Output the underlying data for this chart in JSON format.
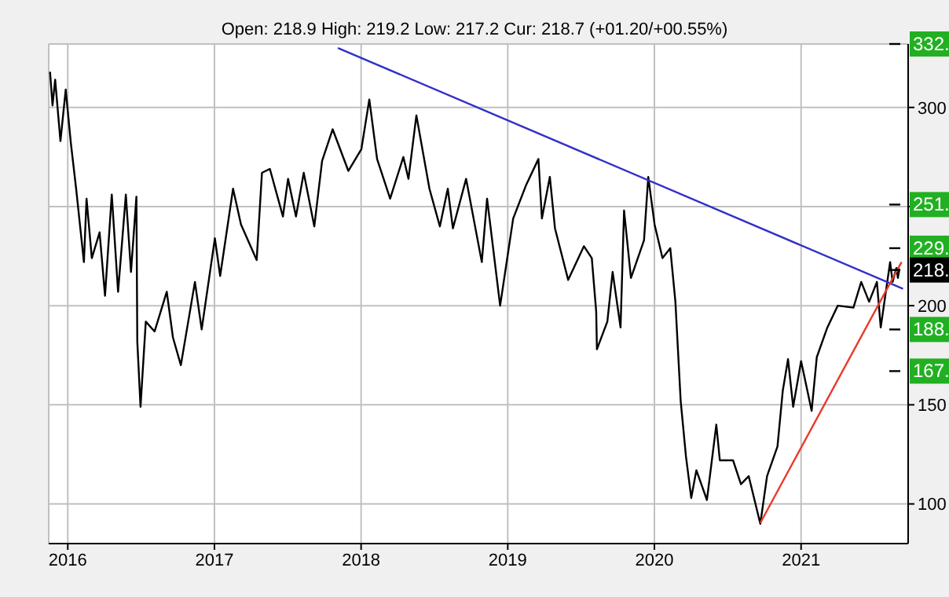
{
  "chart_data": {
    "type": "line",
    "subtitle": "Open: 218.9 High: 219.2 Low: 217.2 Cur: 218.7 (+01.20/+00.55%)",
    "xlim": [
      2015.87,
      2021.73
    ],
    "xticks": [
      2016,
      2017,
      2018,
      2019,
      2020,
      2021
    ],
    "ylim": [
      80,
      332
    ],
    "yticks": [
      100,
      150,
      200,
      {
        "value": 250,
        "label": null
      },
      300
    ],
    "grid": true,
    "series": [
      {
        "color": "#000000",
        "x": [
          2015.879,
          2015.896,
          2015.914,
          2015.95,
          2015.986,
          2016.021,
          2016.057,
          2016.11,
          2016.128,
          2016.164,
          2016.217,
          2016.254,
          2016.3,
          2016.343,
          2016.396,
          2016.431,
          2016.468,
          2016.474,
          2016.496,
          2016.532,
          2016.592,
          2016.675,
          2016.717,
          2016.771,
          2016.867,
          2016.913,
          2017.003,
          2017.039,
          2017.127,
          2017.181,
          2017.288,
          2017.324,
          2017.378,
          2017.467,
          2017.502,
          2017.556,
          2017.609,
          2017.681,
          2017.734,
          2017.806,
          2017.913,
          2018.002,
          2018.056,
          2018.109,
          2018.198,
          2018.288,
          2018.323,
          2018.377,
          2018.466,
          2018.537,
          2018.591,
          2018.626,
          2018.716,
          2018.823,
          2018.859,
          2018.948,
          2019.037,
          2019.126,
          2019.209,
          2019.233,
          2019.287,
          2019.322,
          2019.412,
          2019.519,
          2019.573,
          2019.603,
          2019.608,
          2019.679,
          2019.715,
          2019.769,
          2019.793,
          2019.84,
          2019.929,
          2019.958,
          2020.001,
          2020.055,
          2020.108,
          2020.143,
          2020.179,
          2020.215,
          2020.251,
          2020.286,
          2020.358,
          2020.422,
          2020.446,
          2020.536,
          2020.59,
          2020.643,
          2020.722,
          2020.768,
          2020.839,
          2020.875,
          2020.911,
          2020.946,
          2021.0,
          2021.072,
          2021.107,
          2021.179,
          2021.25,
          2021.357,
          2021.41,
          2021.464,
          2021.517,
          2021.543,
          2021.607,
          2021.624,
          2021.65,
          2021.66,
          2021.671
        ],
        "values": [
          318,
          301,
          314,
          283,
          309,
          282,
          259,
          222,
          254,
          224,
          237,
          205,
          256,
          207,
          256,
          217,
          255,
          182,
          149,
          192,
          187,
          207,
          184,
          170,
          212,
          188,
          234,
          215,
          259,
          241,
          223,
          267,
          269,
          245,
          264,
          245,
          267,
          240,
          273,
          289,
          268,
          279,
          304,
          274,
          254,
          275,
          264,
          296,
          259,
          240,
          259,
          239,
          264,
          222,
          254,
          200,
          244,
          261,
          274,
          244,
          265,
          239,
          213,
          230,
          224,
          197,
          178,
          192,
          217,
          189,
          248,
          214,
          233,
          265,
          241,
          224,
          229,
          202,
          152,
          124,
          103,
          117,
          102,
          140,
          122,
          122,
          110,
          114,
          90,
          114,
          129,
          157,
          173,
          149,
          172,
          147,
          174,
          189,
          200,
          199,
          212,
          202,
          212,
          189,
          222,
          212,
          219,
          214,
          218.7
        ]
      },
      {
        "type": "line",
        "color": "#3030c8",
        "x": [
          2017.842,
          2021.695
        ],
        "values": [
          330,
          208.5
        ]
      },
      {
        "type": "line",
        "color": "#e83a2a",
        "x": [
          2020.722,
          2021.685
        ],
        "values": [
          90.4,
          222
        ]
      }
    ],
    "y2lim": [
      80,
      332
    ],
    "y2ticks": [
      {
        "value": 332,
        "label": "332."
      },
      {
        "value": 251,
        "label": "251."
      },
      {
        "value": 229,
        "label": "229."
      },
      {
        "value": 218,
        "label": "218."
      },
      {
        "value": 188,
        "label": "188."
      },
      {
        "value": 167,
        "label": "167."
      }
    ]
  }
}
